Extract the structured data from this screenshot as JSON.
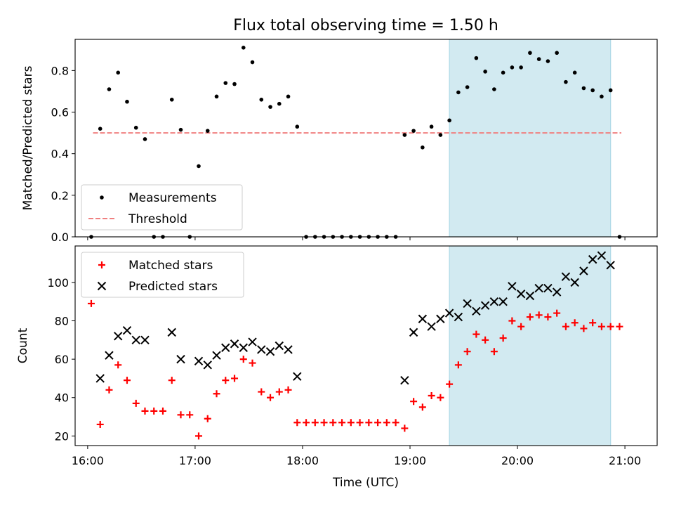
{
  "figure": {
    "title": "Flux total observing time = 1.50 h",
    "xlabel": "Time (UTC)",
    "x_ticks": [
      "16:00",
      "17:00",
      "18:00",
      "19:00",
      "20:00",
      "21:00"
    ]
  },
  "chart_data": [
    {
      "type": "scatter",
      "name": "ratio-panel",
      "ylabel": "Matched/Predicted stars",
      "ylim": [
        0,
        0.95
      ],
      "xlim": [
        "15:53",
        "21:18"
      ],
      "y_ticks": [
        0.0,
        0.2,
        0.4,
        0.6,
        0.8
      ],
      "y_tick_labels": [
        "0.0",
        "0.2",
        "0.4",
        "0.6",
        "0.8"
      ],
      "shaded_region": {
        "x_start": "19:22",
        "x_end": "20:52",
        "color": "#add8e6"
      },
      "threshold": {
        "value": 0.5,
        "x_start": "16:03",
        "x_end": "20:58",
        "color": "#f08080"
      },
      "legend": {
        "placement": "lower-left",
        "entries": [
          {
            "label": "Measurements",
            "marker": "dot",
            "color": "#000000"
          },
          {
            "label": "Threshold",
            "marker": "dashed-line",
            "color": "#f08080"
          }
        ]
      },
      "series": [
        {
          "name": "Measurements",
          "color": "#000000",
          "points": [
            [
              "16:02",
              0.0
            ],
            [
              "16:07",
              0.52
            ],
            [
              "16:12",
              0.71
            ],
            [
              "16:17",
              0.79
            ],
            [
              "16:22",
              0.65
            ],
            [
              "16:27",
              0.525
            ],
            [
              "16:32",
              0.47
            ],
            [
              "16:37",
              0.0
            ],
            [
              "16:42",
              0.0
            ],
            [
              "16:47",
              0.66
            ],
            [
              "16:52",
              0.515
            ],
            [
              "16:57",
              0.0
            ],
            [
              "17:02",
              0.34
            ],
            [
              "17:07",
              0.51
            ],
            [
              "17:12",
              0.675
            ],
            [
              "17:17",
              0.74
            ],
            [
              "17:22",
              0.735
            ],
            [
              "17:27",
              0.91
            ],
            [
              "17:32",
              0.84
            ],
            [
              "17:37",
              0.66
            ],
            [
              "17:42",
              0.625
            ],
            [
              "17:47",
              0.64
            ],
            [
              "17:52",
              0.675
            ],
            [
              "17:57",
              0.53
            ],
            [
              "18:02",
              0.0
            ],
            [
              "18:07",
              0.0
            ],
            [
              "18:12",
              0.0
            ],
            [
              "18:17",
              0.0
            ],
            [
              "18:22",
              0.0
            ],
            [
              "18:27",
              0.0
            ],
            [
              "18:32",
              0.0
            ],
            [
              "18:37",
              0.0
            ],
            [
              "18:42",
              0.0
            ],
            [
              "18:47",
              0.0
            ],
            [
              "18:52",
              0.0
            ],
            [
              "18:57",
              0.49
            ],
            [
              "19:02",
              0.51
            ],
            [
              "19:07",
              0.43
            ],
            [
              "19:12",
              0.53
            ],
            [
              "19:17",
              0.49
            ],
            [
              "19:22",
              0.56
            ],
            [
              "19:27",
              0.695
            ],
            [
              "19:32",
              0.72
            ],
            [
              "19:37",
              0.86
            ],
            [
              "19:42",
              0.795
            ],
            [
              "19:47",
              0.71
            ],
            [
              "19:52",
              0.79
            ],
            [
              "19:57",
              0.815
            ],
            [
              "20:02",
              0.815
            ],
            [
              "20:07",
              0.885
            ],
            [
              "20:12",
              0.855
            ],
            [
              "20:17",
              0.845
            ],
            [
              "20:22",
              0.885
            ],
            [
              "20:27",
              0.745
            ],
            [
              "20:32",
              0.79
            ],
            [
              "20:37",
              0.715
            ],
            [
              "20:42",
              0.705
            ],
            [
              "20:47",
              0.675
            ],
            [
              "20:52",
              0.705
            ],
            [
              "20:57",
              0.0
            ]
          ]
        }
      ]
    },
    {
      "type": "scatter",
      "name": "count-panel",
      "ylabel": "Count",
      "ylim": [
        15,
        119
      ],
      "xlim": [
        "15:53",
        "21:18"
      ],
      "y_ticks": [
        20,
        40,
        60,
        80,
        100
      ],
      "y_tick_labels": [
        "20",
        "40",
        "60",
        "80",
        "100"
      ],
      "shaded_region": {
        "x_start": "19:22",
        "x_end": "20:52",
        "color": "#add8e6"
      },
      "legend": {
        "placement": "upper-left",
        "entries": [
          {
            "label": "Matched stars",
            "marker": "plus",
            "color": "#ff0000"
          },
          {
            "label": "Predicted stars",
            "marker": "x",
            "color": "#000000"
          }
        ]
      },
      "series": [
        {
          "name": "Matched stars",
          "marker": "plus",
          "color": "#ff0000",
          "points": [
            [
              "16:02",
              89
            ],
            [
              "16:07",
              26
            ],
            [
              "16:12",
              44
            ],
            [
              "16:17",
              57
            ],
            [
              "16:22",
              49
            ],
            [
              "16:27",
              37
            ],
            [
              "16:32",
              33
            ],
            [
              "16:37",
              33
            ],
            [
              "16:42",
              33
            ],
            [
              "16:47",
              49
            ],
            [
              "16:52",
              31
            ],
            [
              "16:57",
              31
            ],
            [
              "17:02",
              20
            ],
            [
              "17:07",
              29
            ],
            [
              "17:12",
              42
            ],
            [
              "17:17",
              49
            ],
            [
              "17:22",
              50
            ],
            [
              "17:27",
              60
            ],
            [
              "17:32",
              58
            ],
            [
              "17:37",
              43
            ],
            [
              "17:42",
              40
            ],
            [
              "17:47",
              43
            ],
            [
              "17:52",
              44
            ],
            [
              "17:57",
              27
            ],
            [
              "18:02",
              27
            ],
            [
              "18:07",
              27
            ],
            [
              "18:12",
              27
            ],
            [
              "18:17",
              27
            ],
            [
              "18:22",
              27
            ],
            [
              "18:27",
              27
            ],
            [
              "18:32",
              27
            ],
            [
              "18:37",
              27
            ],
            [
              "18:42",
              27
            ],
            [
              "18:47",
              27
            ],
            [
              "18:52",
              27
            ],
            [
              "18:57",
              24
            ],
            [
              "19:02",
              38
            ],
            [
              "19:07",
              35
            ],
            [
              "19:12",
              41
            ],
            [
              "19:17",
              40
            ],
            [
              "19:22",
              47
            ],
            [
              "19:27",
              57
            ],
            [
              "19:32",
              64
            ],
            [
              "19:37",
              73
            ],
            [
              "19:42",
              70
            ],
            [
              "19:47",
              64
            ],
            [
              "19:52",
              71
            ],
            [
              "19:57",
              80
            ],
            [
              "20:02",
              77
            ],
            [
              "20:07",
              82
            ],
            [
              "20:12",
              83
            ],
            [
              "20:17",
              82
            ],
            [
              "20:22",
              84
            ],
            [
              "20:27",
              77
            ],
            [
              "20:32",
              79
            ],
            [
              "20:37",
              76
            ],
            [
              "20:42",
              79
            ],
            [
              "20:47",
              77
            ],
            [
              "20:52",
              77
            ],
            [
              "20:57",
              77
            ]
          ]
        },
        {
          "name": "Predicted stars",
          "marker": "x",
          "color": "#000000",
          "points": [
            [
              "16:07",
              50
            ],
            [
              "16:12",
              62
            ],
            [
              "16:17",
              72
            ],
            [
              "16:22",
              75
            ],
            [
              "16:27",
              70
            ],
            [
              "16:32",
              70
            ],
            [
              "16:47",
              74
            ],
            [
              "16:52",
              60
            ],
            [
              "17:02",
              59
            ],
            [
              "17:07",
              57
            ],
            [
              "17:12",
              62
            ],
            [
              "17:17",
              66
            ],
            [
              "17:22",
              68
            ],
            [
              "17:27",
              66
            ],
            [
              "17:32",
              69
            ],
            [
              "17:37",
              65
            ],
            [
              "17:42",
              64
            ],
            [
              "17:47",
              67
            ],
            [
              "17:52",
              65
            ],
            [
              "17:57",
              51
            ],
            [
              "18:57",
              49
            ],
            [
              "19:02",
              74
            ],
            [
              "19:07",
              81
            ],
            [
              "19:12",
              77
            ],
            [
              "19:17",
              81
            ],
            [
              "19:22",
              84
            ],
            [
              "19:27",
              82
            ],
            [
              "19:32",
              89
            ],
            [
              "19:37",
              85
            ],
            [
              "19:42",
              88
            ],
            [
              "19:47",
              90
            ],
            [
              "19:52",
              90
            ],
            [
              "19:57",
              98
            ],
            [
              "20:02",
              94
            ],
            [
              "20:07",
              93
            ],
            [
              "20:12",
              97
            ],
            [
              "20:17",
              97
            ],
            [
              "20:22",
              95
            ],
            [
              "20:27",
              103
            ],
            [
              "20:32",
              100
            ],
            [
              "20:37",
              106
            ],
            [
              "20:42",
              112
            ],
            [
              "20:47",
              114
            ],
            [
              "20:52",
              109
            ]
          ]
        }
      ]
    }
  ]
}
